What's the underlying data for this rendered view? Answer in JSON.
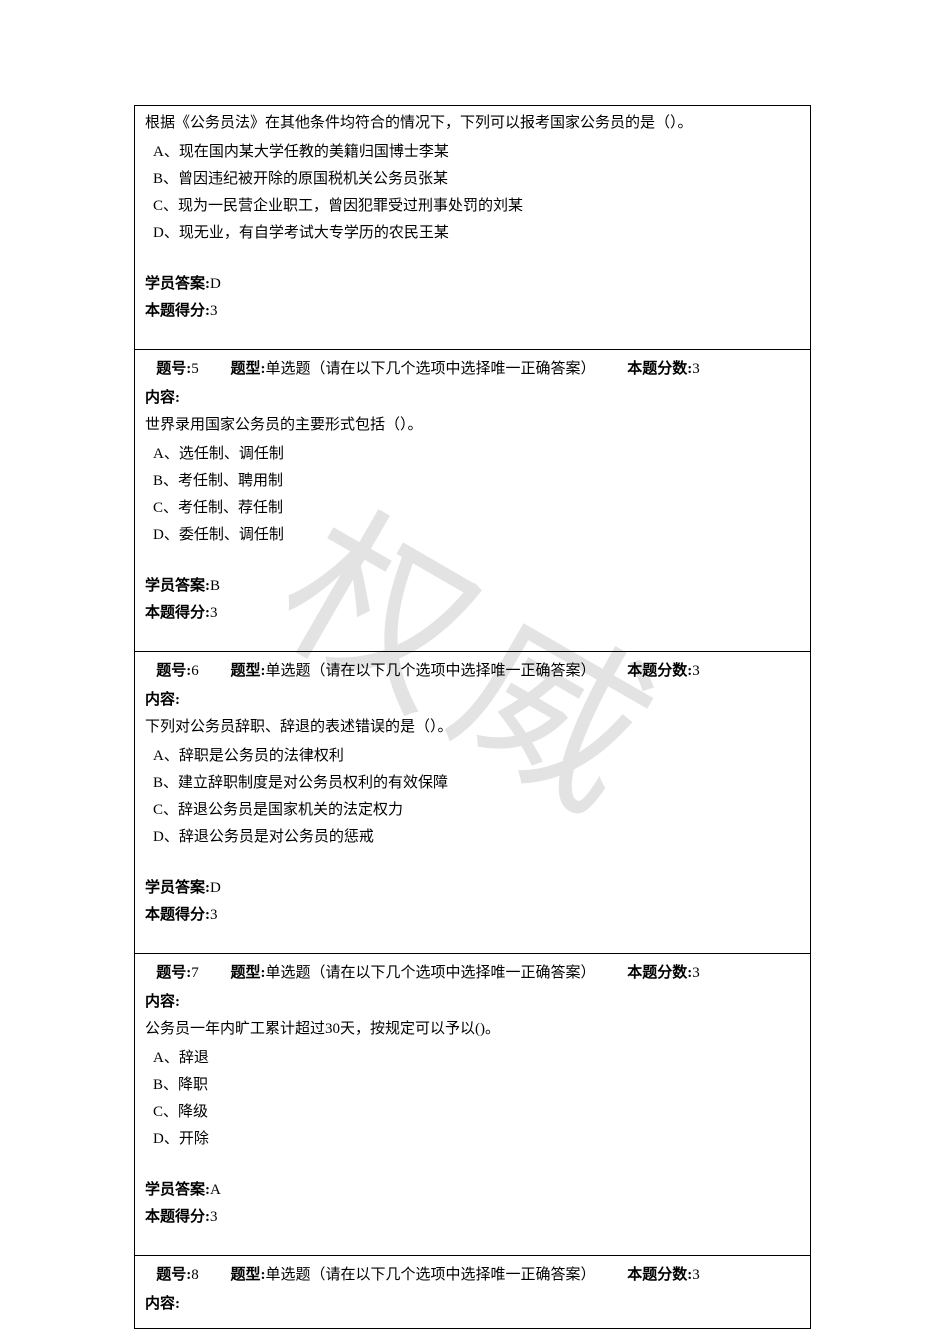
{
  "watermark": "权威",
  "questions": [
    {
      "id": "q4",
      "showHeader": false,
      "question_text": "根据《公务员法》在其他条件均符合的情况下，下列可以报考国家公务员的是（）。",
      "options": [
        "A、现在国内某大学任教的美籍归国博士李某",
        "B、曾因违纪被开除的原国税机关公务员张某",
        "C、现为一民营企业职工，曾因犯罪受过刑事处罚的刘某",
        "D、现无业，有自学考试大专学历的农民王某"
      ],
      "answer_label": "学员答案:",
      "answer": "D",
      "score_label": "本题得分:",
      "score": "3"
    },
    {
      "id": "q5",
      "showHeader": true,
      "num_label": "题号:",
      "num": "5",
      "type_label": "题型:",
      "type": "单选题（请在以下几个选项中选择唯一正确答案）",
      "maxscore_label": "本题分数:",
      "maxscore": "3",
      "content_label": "内容:",
      "question_text": "世界录用国家公务员的主要形式包括（）。",
      "options": [
        "A、选任制、调任制",
        "B、考任制、聘用制",
        "C、考任制、荐任制",
        "D、委任制、调任制"
      ],
      "answer_label": "学员答案:",
      "answer": "B",
      "score_label": "本题得分:",
      "score": "3"
    },
    {
      "id": "q6",
      "showHeader": true,
      "num_label": "题号:",
      "num": "6",
      "type_label": "题型:",
      "type": "单选题（请在以下几个选项中选择唯一正确答案）",
      "maxscore_label": "本题分数:",
      "maxscore": "3",
      "content_label": "内容:",
      "question_text": "下列对公务员辞职、辞退的表述错误的是（）。",
      "options": [
        "A、辞职是公务员的法律权利",
        "B、建立辞职制度是对公务员权利的有效保障",
        "C、辞退公务员是国家机关的法定权力",
        "D、辞退公务员是对公务员的惩戒"
      ],
      "answer_label": "学员答案:",
      "answer": "D",
      "score_label": "本题得分:",
      "score": "3"
    },
    {
      "id": "q7",
      "showHeader": true,
      "num_label": "题号:",
      "num": "7",
      "type_label": "题型:",
      "type": "单选题（请在以下几个选项中选择唯一正确答案）",
      "maxscore_label": "本题分数:",
      "maxscore": "3",
      "content_label": "内容:",
      "question_text": "公务员一年内旷工累计超过30天，按规定可以予以()。",
      "options": [
        "A、辞退",
        "B、降职",
        "C、降级",
        "D、开除"
      ],
      "answer_label": "学员答案:",
      "answer": "A",
      "score_label": "本题得分:",
      "score": "3"
    },
    {
      "id": "q8",
      "showHeader": true,
      "headerOnly": true,
      "num_label": "题号:",
      "num": "8",
      "type_label": "题型:",
      "type": "单选题（请在以下几个选项中选择唯一正确答案）",
      "maxscore_label": "本题分数:",
      "maxscore": "3",
      "content_label": "内容:"
    }
  ]
}
